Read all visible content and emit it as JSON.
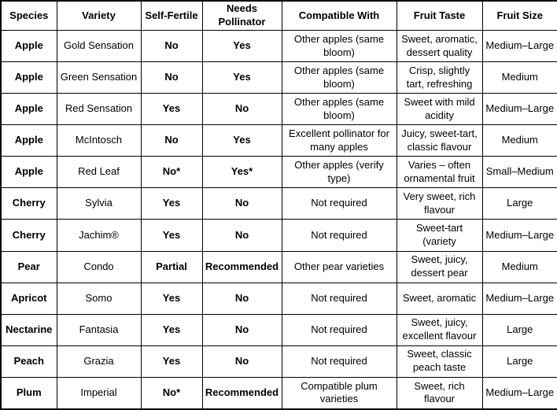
{
  "table": {
    "columns": [
      {
        "key": "species",
        "label": "Species"
      },
      {
        "key": "variety",
        "label": "Variety"
      },
      {
        "key": "self_fertile",
        "label": "Self-Fertile"
      },
      {
        "key": "needs_pollinator",
        "label": "Needs Pollinator"
      },
      {
        "key": "compatible_with",
        "label": "Compatible With"
      },
      {
        "key": "fruit_taste",
        "label": "Fruit Taste"
      },
      {
        "key": "fruit_size",
        "label": "Fruit Size"
      }
    ],
    "rows": [
      {
        "species": "Apple",
        "variety": "Gold Sensation",
        "self_fertile": "No",
        "needs_pollinator": "Yes",
        "compatible_with": "Other apples (same bloom)",
        "fruit_taste": "Sweet, aromatic, dessert quality",
        "fruit_size": "Medium–Large"
      },
      {
        "species": "Apple",
        "variety": "Green Sensation",
        "self_fertile": "No",
        "needs_pollinator": "Yes",
        "compatible_with": "Other apples (same bloom)",
        "fruit_taste": "Crisp, slightly tart, refreshing",
        "fruit_size": "Medium"
      },
      {
        "species": "Apple",
        "variety": "Red Sensation",
        "self_fertile": "Yes",
        "needs_pollinator": "No",
        "compatible_with": "Other apples (same bloom)",
        "fruit_taste": "Sweet with mild acidity",
        "fruit_size": "Medium–Large"
      },
      {
        "species": "Apple",
        "variety": "McIntosch",
        "self_fertile": "No",
        "needs_pollinator": "Yes",
        "compatible_with": "Excellent pollinator for many apples",
        "fruit_taste": "Juicy, sweet-tart, classic flavour",
        "fruit_size": "Medium"
      },
      {
        "species": "Apple",
        "variety": "Red Leaf",
        "self_fertile": "No*",
        "needs_pollinator": "Yes*",
        "compatible_with": "Other apples (verify type)",
        "fruit_taste": "Varies – often ornamental fruit",
        "fruit_size": "Small–Medium"
      },
      {
        "species": "Cherry",
        "variety": "Sylvia",
        "self_fertile": "Yes",
        "needs_pollinator": "No",
        "compatible_with": "Not required",
        "fruit_taste": "Very sweet, rich flavour",
        "fruit_size": "Large"
      },
      {
        "species": "Cherry",
        "variety": "Jachim®",
        "self_fertile": "Yes",
        "needs_pollinator": "No",
        "compatible_with": "Not required",
        "fruit_taste": "Sweet-tart (variety",
        "fruit_size": "Medium–Large"
      },
      {
        "species": "Pear",
        "variety": "Condo",
        "self_fertile": "Partial",
        "needs_pollinator": "Recommended",
        "compatible_with": "Other pear varieties",
        "fruit_taste": "Sweet, juicy, dessert pear",
        "fruit_size": "Medium"
      },
      {
        "species": "Apricot",
        "variety": "Somo",
        "self_fertile": "Yes",
        "needs_pollinator": "No",
        "compatible_with": "Not required",
        "fruit_taste": "Sweet, aromatic",
        "fruit_size": "Medium–Large"
      },
      {
        "species": "Nectarine",
        "variety": "Fantasia",
        "self_fertile": "Yes",
        "needs_pollinator": "No",
        "compatible_with": "Not required",
        "fruit_taste": "Sweet, juicy, excellent flavour",
        "fruit_size": "Large"
      },
      {
        "species": "Peach",
        "variety": "Grazia",
        "self_fertile": "Yes",
        "needs_pollinator": "No",
        "compatible_with": "Not required",
        "fruit_taste": "Sweet, classic peach taste",
        "fruit_size": "Large"
      },
      {
        "species": "Plum",
        "variety": "Imperial",
        "self_fertile": "No*",
        "needs_pollinator": "Recommended",
        "compatible_with": "Compatible plum varieties",
        "fruit_taste": "Sweet, rich flavour",
        "fruit_size": "Medium–Large"
      }
    ]
  },
  "colors": {
    "border": "#000000",
    "text": "#000000",
    "background": "#ffffff"
  }
}
